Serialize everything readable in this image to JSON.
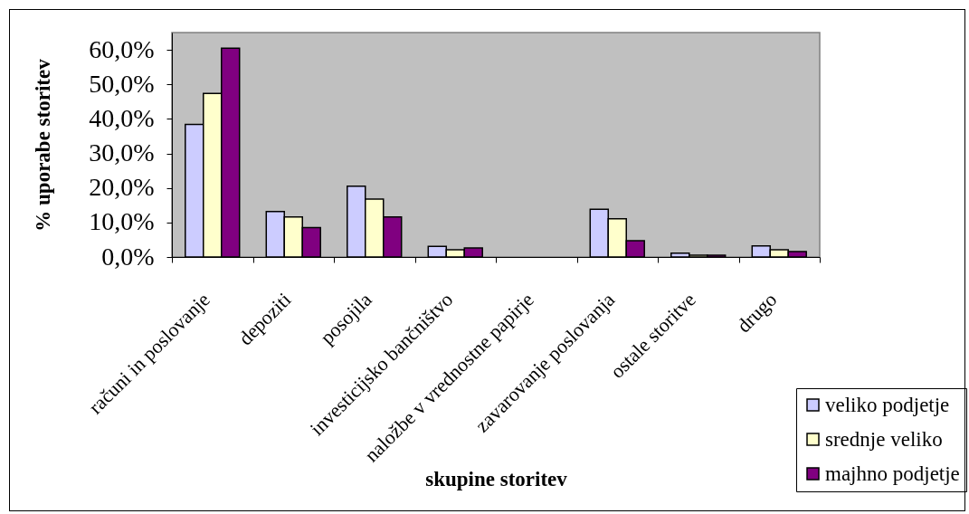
{
  "chart_data": {
    "type": "bar",
    "xlabel": "skupine storitev",
    "ylabel": "% uporabe storitev",
    "categories": [
      "računi in poslovanje",
      "depoziti",
      "posojila",
      "investicijsko bančništvo",
      "naložbe v vrednostne papirje",
      "zavarovanje poslovanja",
      "ostale storitve",
      "drugo"
    ],
    "series": [
      {
        "name": "veliko podjetje",
        "color": "#ccccff",
        "values": [
          38.4,
          13.2,
          20.5,
          3.1,
          null,
          13.8,
          1.1,
          3.2
        ]
      },
      {
        "name": "srednje veliko",
        "color": "#ffffcc",
        "values": [
          47.4,
          11.6,
          16.8,
          2.1,
          null,
          11.1,
          0.5,
          2.1
        ]
      },
      {
        "name": "majhno podjetje",
        "color": "#800080",
        "values": [
          60.5,
          8.5,
          11.6,
          2.6,
          null,
          4.7,
          0.5,
          1.6
        ]
      }
    ],
    "ylim": [
      0,
      65
    ],
    "yticks": [
      {
        "value": 0,
        "label": "0,0%"
      },
      {
        "value": 10,
        "label": "10,0%"
      },
      {
        "value": 20,
        "label": "20,0%"
      },
      {
        "value": 30,
        "label": "30,0%"
      },
      {
        "value": 40,
        "label": "40,0%"
      },
      {
        "value": 50,
        "label": "50,0%"
      },
      {
        "value": 60,
        "label": "60,0%"
      }
    ],
    "legend": "bottom right"
  }
}
